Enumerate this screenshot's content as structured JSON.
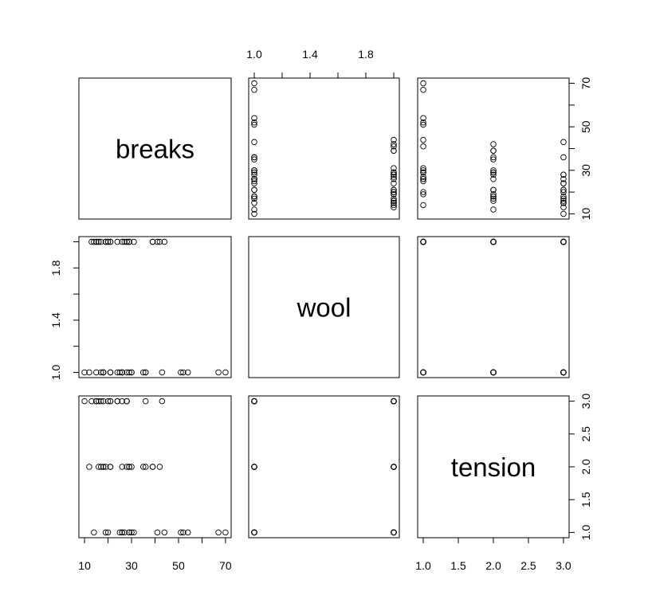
{
  "chart_data": {
    "type": "scatter_matrix",
    "variables": [
      {
        "name": "breaks",
        "values": [
          26,
          30,
          54,
          25,
          70,
          52,
          51,
          26,
          67,
          18,
          21,
          29,
          17,
          12,
          18,
          35,
          30,
          36,
          36,
          21,
          24,
          18,
          10,
          43,
          28,
          15,
          26,
          27,
          14,
          29,
          19,
          29,
          31,
          41,
          20,
          44,
          42,
          26,
          19,
          16,
          39,
          28,
          21,
          39,
          29,
          20,
          21,
          24,
          17,
          13,
          15,
          15,
          16,
          28
        ],
        "lim": [
          7.6,
          72.4
        ],
        "ticks": [
          10,
          {
            "value": 20,
            "label": null
          },
          30,
          {
            "value": 40,
            "label": null
          },
          50,
          {
            "value": 60,
            "label": null
          },
          70
        ]
      },
      {
        "name": "wool",
        "values": [
          1,
          1,
          1,
          1,
          1,
          1,
          1,
          1,
          1,
          1,
          1,
          1,
          1,
          1,
          1,
          1,
          1,
          1,
          1,
          1,
          1,
          1,
          1,
          1,
          1,
          1,
          1,
          2,
          2,
          2,
          2,
          2,
          2,
          2,
          2,
          2,
          2,
          2,
          2,
          2,
          2,
          2,
          2,
          2,
          2,
          2,
          2,
          2,
          2,
          2,
          2,
          2,
          2,
          2
        ],
        "lim": [
          0.96,
          2.04
        ],
        "ticks": [
          {
            "value": 1,
            "label": "1.0"
          },
          {
            "value": 1.2,
            "label": null
          },
          {
            "value": 1.4,
            "label": "1.4"
          },
          {
            "value": 1.6,
            "label": null
          },
          {
            "value": 1.8,
            "label": "1.8"
          },
          {
            "value": 2,
            "label": null
          }
        ]
      },
      {
        "name": "tension",
        "values": [
          1,
          1,
          1,
          1,
          1,
          1,
          1,
          1,
          1,
          2,
          2,
          2,
          2,
          2,
          2,
          2,
          2,
          2,
          3,
          3,
          3,
          3,
          3,
          3,
          3,
          3,
          3,
          1,
          1,
          1,
          1,
          1,
          1,
          1,
          1,
          1,
          2,
          2,
          2,
          2,
          2,
          2,
          2,
          2,
          2,
          3,
          3,
          3,
          3,
          3,
          3,
          3,
          3,
          3
        ],
        "lim": [
          0.92,
          3.08
        ],
        "ticks": [
          {
            "value": 1,
            "label": "1.0"
          },
          1.5,
          {
            "value": 2,
            "label": "2.0"
          },
          2.5,
          {
            "value": 3,
            "label": "3.0"
          }
        ]
      }
    ]
  }
}
